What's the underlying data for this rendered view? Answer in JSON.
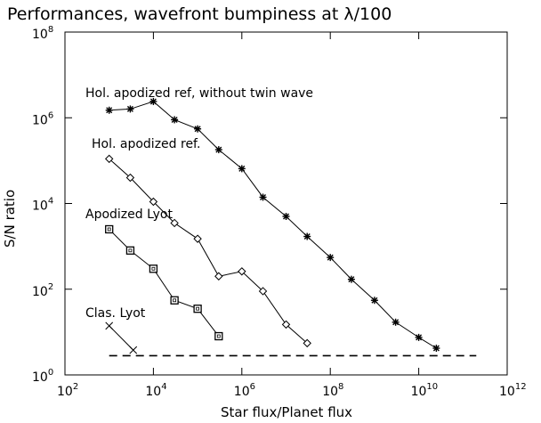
{
  "chart_data": {
    "type": "line",
    "title": "Performances, wavefront bumpiness at  λ/100",
    "xlabel": "Star flux/Planet flux",
    "ylabel": "S/N ratio",
    "xscale": "log",
    "yscale": "log",
    "xlim": [
      100,
      1000000000000
    ],
    "ylim": [
      1,
      100000000
    ],
    "x_ticks": [
      {
        "value": 100,
        "base": "10",
        "exp": "2"
      },
      {
        "value": 10000,
        "base": "10",
        "exp": "4"
      },
      {
        "value": 1000000,
        "base": "10",
        "exp": "6"
      },
      {
        "value": 100000000,
        "base": "10",
        "exp": "8"
      },
      {
        "value": 10000000000,
        "base": "10",
        "exp": "10"
      },
      {
        "value": 1000000000000,
        "base": "10",
        "exp": "12"
      }
    ],
    "y_ticks": [
      {
        "value": 1,
        "base": "10",
        "exp": "0"
      },
      {
        "value": 100,
        "base": "10",
        "exp": "2"
      },
      {
        "value": 10000,
        "base": "10",
        "exp": "4"
      },
      {
        "value": 1000000,
        "base": "10",
        "exp": "6"
      },
      {
        "value": 100000000,
        "base": "10",
        "exp": "8"
      }
    ],
    "grid": false,
    "series": [
      {
        "name": "Hol. apodized ref, without twin wave",
        "marker": "asterisk",
        "x": [
          1000,
          3000,
          10000,
          30000,
          100000,
          300000,
          1000000,
          3000000,
          10000000,
          30000000,
          100000000,
          300000000,
          1000000000,
          3000000000,
          10000000000,
          25000000000
        ],
        "y": [
          1500000,
          1600000,
          2400000,
          900000,
          550000,
          180000,
          65000,
          14000,
          5000,
          1700,
          550,
          170,
          55,
          17,
          7.5,
          4.2
        ]
      },
      {
        "name": "Hol.  apodized ref.",
        "marker": "diamond",
        "x": [
          1000,
          3000,
          10000,
          30000,
          100000,
          300000,
          1000000,
          3000000,
          10000000,
          30000000
        ],
        "y": [
          110000,
          40000,
          11000,
          3500,
          1500,
          200,
          260,
          90,
          15,
          5.5
        ]
      },
      {
        "name": "Apodized Lyot",
        "marker": "square",
        "x": [
          1000,
          3000,
          10000,
          30000,
          100000,
          300000
        ],
        "y": [
          2500,
          800,
          300,
          55,
          35,
          8
        ]
      },
      {
        "name": "Clas. Lyot",
        "marker": "cross",
        "x": [
          1000,
          3500
        ],
        "y": [
          14,
          3.8
        ]
      }
    ],
    "reference_line": {
      "style": "dashed",
      "y": 2.8,
      "x_range": [
        1000,
        200000000000
      ]
    }
  }
}
